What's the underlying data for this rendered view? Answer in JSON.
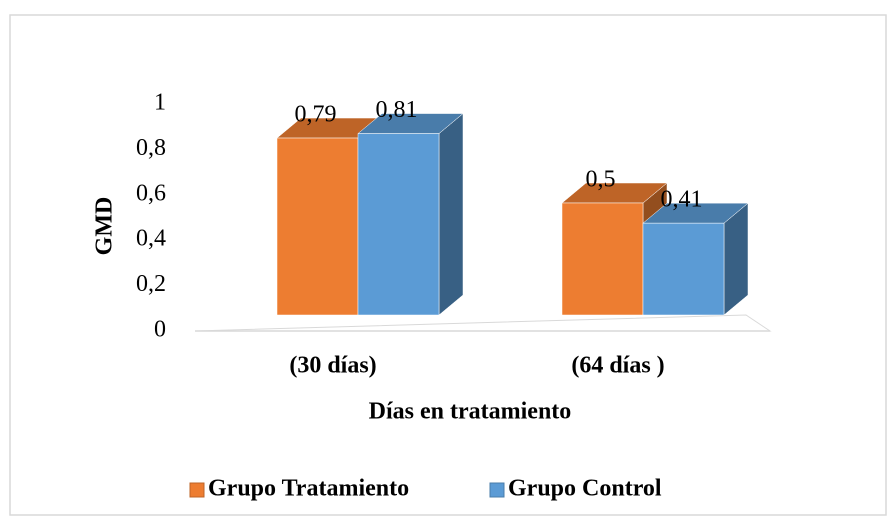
{
  "chart_data": {
    "type": "bar3d",
    "categories": [
      "(30 días)",
      "(64 días )"
    ],
    "series": [
      {
        "name": "Grupo Tratamiento",
        "color": "#ed7d31",
        "values": [
          0.79,
          0.5
        ],
        "value_labels": [
          "0,79",
          "0,5"
        ]
      },
      {
        "name": "Grupo Control",
        "color": "#5b9bd5",
        "values": [
          0.81,
          0.41
        ],
        "value_labels": [
          "0,81",
          "0,41"
        ]
      }
    ],
    "y_label": "GMD",
    "x_label": "Días en tratamiento",
    "ylim": [
      0,
      1
    ],
    "yticks": [
      0,
      {
        "value": 0.2,
        "label": "0,2"
      },
      {
        "value": 0.4,
        "label": "0,4"
      },
      {
        "value": 0.6,
        "label": "0,6"
      },
      {
        "value": 0.8,
        "label": "0,8"
      },
      1
    ],
    "legend": "bottom"
  }
}
